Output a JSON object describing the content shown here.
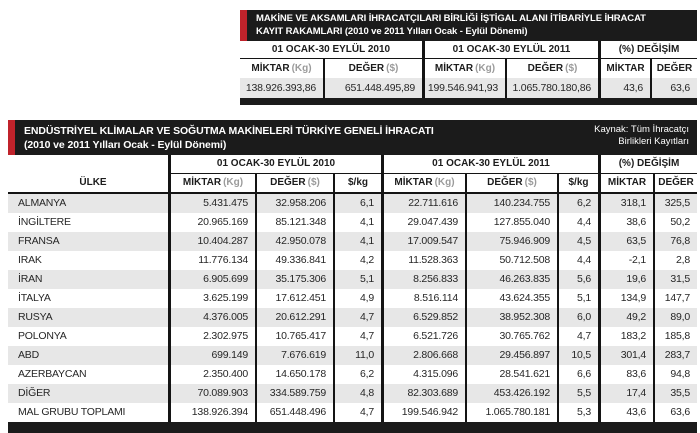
{
  "colors": {
    "accent_red": "#c0232b",
    "title_black": "#1b1b1b",
    "row_stripe": "#e7e7e7"
  },
  "labels": {
    "period_2010": "01 OCAK-30 EYLÜL 2010",
    "period_2011": "01 OCAK-30 EYLÜL 2011",
    "change": "(%) DEĞİŞİM",
    "miktar": "MİKTAR",
    "kg_unit": "(Kg)",
    "deger": "DEĞER",
    "usd_unit": "($)",
    "per_kg": "$/kg",
    "country": "ÜLKE"
  },
  "machines_summary_table": {
    "title_line1": "MAKİNE VE AKSAMLARI İHRACATÇILARI BİRLİĞİ İŞTİGAL ALANI İTİBARİYLE İHRACAT",
    "title_line2": "KAYIT RAKAMLARI (2010 ve 2011 Yılları Ocak - Eylül Dönemi)",
    "totals": {
      "miktar_2010": "138.926.393,86",
      "deger_2010": "651.448.495,89",
      "miktar_2011": "199.546.941,93",
      "deger_2011": "1.065.780.180,86",
      "miktar_change": "43,6",
      "deger_change": "63,6"
    }
  },
  "climate_export_table": {
    "title_line1": "ENDÜSTRİYEL KLİMALAR VE SOĞUTMA MAKİNELERİ TÜRKİYE GENELİ İHRACATI",
    "title_line2": "(2010 ve 2011 Yılları Ocak - Eylül Dönemi)",
    "source_line1": "Kaynak: Tüm İhracatçı",
    "source_line2": "Birlikleri Kayıtları",
    "rows": [
      {
        "country": "ALMANYA",
        "miktar_2010": "5.431.475",
        "deger_2010": "32.958.206",
        "per_kg_2010": "6,1",
        "miktar_2011": "22.711.616",
        "deger_2011": "140.234.755",
        "per_kg_2011": "6,2",
        "miktar_change": "318,1",
        "deger_change": "325,5"
      },
      {
        "country": "İNGİLTERE",
        "miktar_2010": "20.965.169",
        "deger_2010": "85.121.348",
        "per_kg_2010": "4,1",
        "miktar_2011": "29.047.439",
        "deger_2011": "127.855.040",
        "per_kg_2011": "4,4",
        "miktar_change": "38,6",
        "deger_change": "50,2"
      },
      {
        "country": "FRANSA",
        "miktar_2010": "10.404.287",
        "deger_2010": "42.950.078",
        "per_kg_2010": "4,1",
        "miktar_2011": "17.009.547",
        "deger_2011": "75.946.909",
        "per_kg_2011": "4,5",
        "miktar_change": "63,5",
        "deger_change": "76,8"
      },
      {
        "country": "IRAK",
        "miktar_2010": "11.776.134",
        "deger_2010": "49.336.841",
        "per_kg_2010": "4,2",
        "miktar_2011": "11.528.363",
        "deger_2011": "50.712.508",
        "per_kg_2011": "4,4",
        "miktar_change": "-2,1",
        "deger_change": "2,8"
      },
      {
        "country": "İRAN",
        "miktar_2010": "6.905.699",
        "deger_2010": "35.175.306",
        "per_kg_2010": "5,1",
        "miktar_2011": "8.256.833",
        "deger_2011": "46.263.835",
        "per_kg_2011": "5,6",
        "miktar_change": "19,6",
        "deger_change": "31,5"
      },
      {
        "country": "İTALYA",
        "miktar_2010": "3.625.199",
        "deger_2010": "17.612.451",
        "per_kg_2010": "4,9",
        "miktar_2011": "8.516.114",
        "deger_2011": "43.624.355",
        "per_kg_2011": "5,1",
        "miktar_change": "134,9",
        "deger_change": "147,7"
      },
      {
        "country": "RUSYA",
        "miktar_2010": "4.376.005",
        "deger_2010": "20.612.291",
        "per_kg_2010": "4,7",
        "miktar_2011": "6.529.852",
        "deger_2011": "38.952.308",
        "per_kg_2011": "6,0",
        "miktar_change": "49,2",
        "deger_change": "89,0"
      },
      {
        "country": "POLONYA",
        "miktar_2010": "2.302.975",
        "deger_2010": "10.765.417",
        "per_kg_2010": "4,7",
        "miktar_2011": "6.521.726",
        "deger_2011": "30.765.762",
        "per_kg_2011": "4,7",
        "miktar_change": "183,2",
        "deger_change": "185,8"
      },
      {
        "country": "ABD",
        "miktar_2010": "699.149",
        "deger_2010": "7.676.619",
        "per_kg_2010": "11,0",
        "miktar_2011": "2.806.668",
        "deger_2011": "29.456.897",
        "per_kg_2011": "10,5",
        "miktar_change": "301,4",
        "deger_change": "283,7"
      },
      {
        "country": "AZERBAYCAN",
        "miktar_2010": "2.350.400",
        "deger_2010": "14.650.178",
        "per_kg_2010": "6,2",
        "miktar_2011": "4.315.096",
        "deger_2011": "28.541.621",
        "per_kg_2011": "6,6",
        "miktar_change": "83,6",
        "deger_change": "94,8"
      },
      {
        "country": "DİĞER",
        "miktar_2010": "70.089.903",
        "deger_2010": "334.589.759",
        "per_kg_2010": "4,8",
        "miktar_2011": "82.303.689",
        "deger_2011": "453.426.192",
        "per_kg_2011": "5,5",
        "miktar_change": "17,4",
        "deger_change": "35,5"
      },
      {
        "country": "MAL GRUBU TOPLAMI",
        "miktar_2010": "138.926.394",
        "deger_2010": "651.448.496",
        "per_kg_2010": "4,7",
        "miktar_2011": "199.546.942",
        "deger_2011": "1.065.780.181",
        "per_kg_2011": "5,3",
        "miktar_change": "43,6",
        "deger_change": "63,6"
      }
    ]
  }
}
